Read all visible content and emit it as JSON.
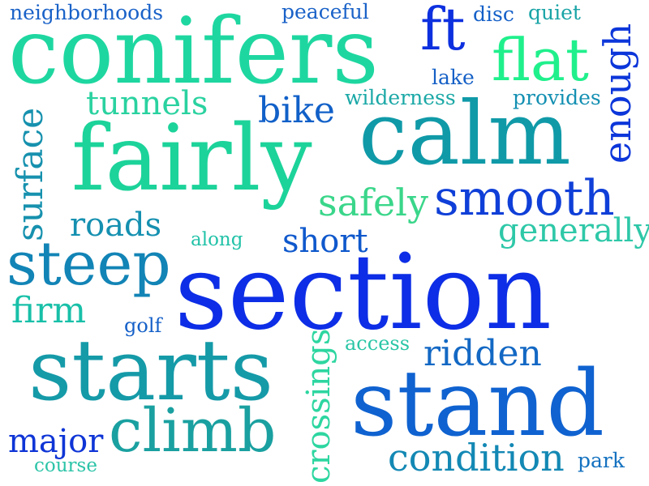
{
  "words": [
    {
      "text": "section",
      "color": "#0d2ee6"
    },
    {
      "text": "conifers",
      "color": "#1ed7a0"
    },
    {
      "text": "fairly",
      "color": "#1cd39a"
    },
    {
      "text": "calm",
      "color": "#109aa8"
    },
    {
      "text": "starts",
      "color": "#159aa8"
    },
    {
      "text": "stand",
      "color": "#0f62d0"
    },
    {
      "text": "steep",
      "color": "#1284b6"
    },
    {
      "text": "climb",
      "color": "#1aa0a0"
    },
    {
      "text": "smooth",
      "color": "#0f3fd8"
    },
    {
      "text": "flat",
      "color": "#20f08c"
    },
    {
      "text": "ft",
      "color": "#0d30df"
    },
    {
      "text": "surface",
      "color": "#1691ae"
    },
    {
      "text": "enough",
      "color": "#0c36da"
    },
    {
      "text": "safely",
      "color": "#3ad68a"
    },
    {
      "text": "condition",
      "color": "#1388b4"
    },
    {
      "text": "ridden",
      "color": "#1368c4"
    },
    {
      "text": "crossings",
      "color": "#2dd6a0"
    },
    {
      "text": "tunnels",
      "color": "#2ad2a0"
    },
    {
      "text": "roads",
      "color": "#1590b0"
    },
    {
      "text": "generally",
      "color": "#2ec8a8"
    },
    {
      "text": "short",
      "color": "#0f58cc"
    },
    {
      "text": "firm",
      "color": "#18c0a8"
    },
    {
      "text": "bike",
      "color": "#1160c8"
    },
    {
      "text": "major",
      "color": "#0f35d6"
    },
    {
      "text": "neighborhoods",
      "color": "#1a62c8"
    },
    {
      "text": "peaceful",
      "color": "#1a62c8"
    },
    {
      "text": "disc",
      "color": "#1460c8"
    },
    {
      "text": "quiet",
      "color": "#1aa4a6"
    },
    {
      "text": "lake",
      "color": "#1560c6"
    },
    {
      "text": "wilderness",
      "color": "#1aa8a6"
    },
    {
      "text": "provides",
      "color": "#1490b2"
    },
    {
      "text": "along",
      "color": "#22c2a8"
    },
    {
      "text": "golf",
      "color": "#1560c8"
    },
    {
      "text": "access",
      "color": "#2ac6a6"
    },
    {
      "text": "course",
      "color": "#2cc4a8"
    },
    {
      "text": "park",
      "color": "#1572c0"
    }
  ]
}
